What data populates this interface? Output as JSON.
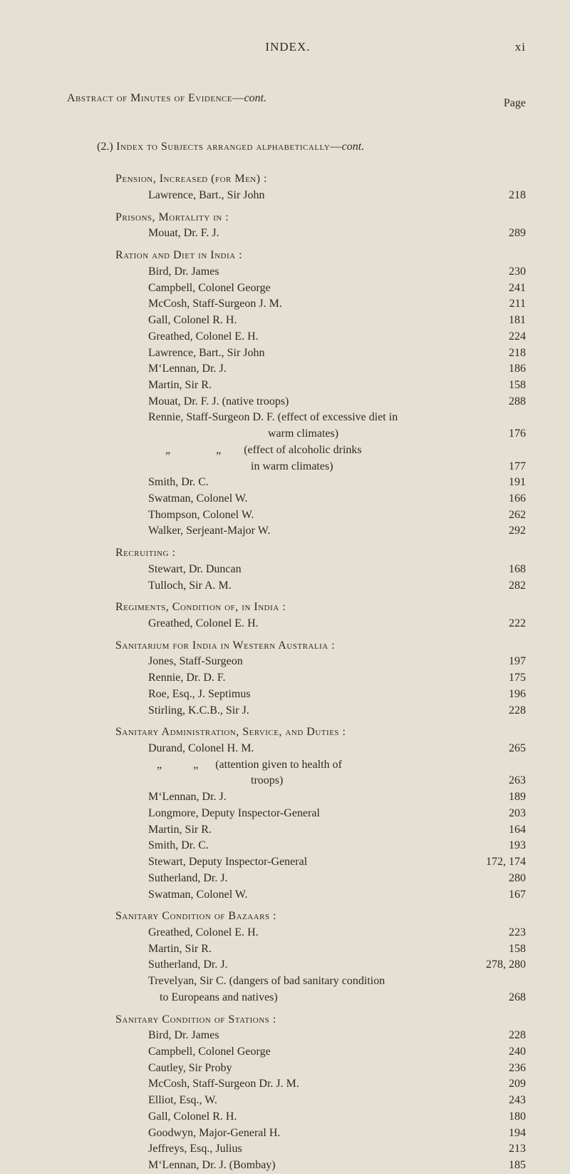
{
  "runningHead": {
    "title": "INDEX.",
    "folio": "xi"
  },
  "pageLabel": "Page",
  "topHeading1": {
    "pre": "Abstract",
    "rest": " of Minutes of Evidence—",
    "tail": "cont."
  },
  "topHeading2": {
    "num": "(2.)",
    "rest": " Index to Subjects arranged alphabetically—",
    "tail": "cont."
  },
  "entries": [
    {
      "type": "head",
      "indent": 2,
      "text": "Pension, Increased (for Men) :",
      "sc": true
    },
    {
      "type": "item",
      "indent": 3,
      "label": "Lawrence, Bart., Sir John",
      "page": "218"
    },
    {
      "type": "gap"
    },
    {
      "type": "head",
      "indent": 2,
      "text": "Prisons, Mortality in :",
      "sc": true
    },
    {
      "type": "item",
      "indent": 3,
      "label": "Mouat, Dr. F. J.",
      "page": "289"
    },
    {
      "type": "gap"
    },
    {
      "type": "head",
      "indent": 2,
      "text": "Ration and Diet in India :",
      "sc": true
    },
    {
      "type": "item",
      "indent": 3,
      "label": "Bird, Dr. James",
      "page": "230"
    },
    {
      "type": "item",
      "indent": 3,
      "label": "Campbell, Colonel George",
      "page": "241"
    },
    {
      "type": "item",
      "indent": 3,
      "label": "McCosh, Staff-Surgeon J. M.",
      "page": "211"
    },
    {
      "type": "item",
      "indent": 3,
      "label": "Gall, Colonel R. H.",
      "page": "181"
    },
    {
      "type": "item",
      "indent": 3,
      "label": "Greathed, Colonel E. H.",
      "page": "224"
    },
    {
      "type": "item",
      "indent": 3,
      "label": "Lawrence, Bart., Sir John",
      "page": "218"
    },
    {
      "type": "item",
      "indent": 3,
      "label": "M‘Lennan, Dr. J.",
      "page": "186"
    },
    {
      "type": "item",
      "indent": 3,
      "label": "Martin, Sir R.",
      "page": "158"
    },
    {
      "type": "item",
      "indent": 3,
      "label": "Mouat, Dr. F. J. (native troops)",
      "page": "288"
    },
    {
      "type": "item",
      "indent": 3,
      "label": "Rennie, Staff-Surgeon D. F. (effect of excessive diet in",
      "page": ""
    },
    {
      "type": "item",
      "indent": 3,
      "label": "                                          warm climates)",
      "page": "176"
    },
    {
      "type": "item",
      "indent": 3,
      "label": "      „                „        (effect of alcoholic drinks",
      "page": ""
    },
    {
      "type": "item",
      "indent": 3,
      "label": "                                    in warm climates)",
      "page": "177"
    },
    {
      "type": "item",
      "indent": 3,
      "label": "Smith, Dr. C.",
      "page": "191"
    },
    {
      "type": "item",
      "indent": 3,
      "label": "Swatman, Colonel W.",
      "page": "166"
    },
    {
      "type": "item",
      "indent": 3,
      "label": "Thompson, Colonel W.",
      "page": "262"
    },
    {
      "type": "item",
      "indent": 3,
      "label": "Walker, Serjeant-Major W.",
      "page": "292"
    },
    {
      "type": "gap"
    },
    {
      "type": "head",
      "indent": 2,
      "text": "Recruiting :",
      "sc": true
    },
    {
      "type": "item",
      "indent": 3,
      "label": "Stewart, Dr. Duncan",
      "page": "168"
    },
    {
      "type": "item",
      "indent": 3,
      "label": "Tulloch, Sir A. M.",
      "page": "282"
    },
    {
      "type": "gap"
    },
    {
      "type": "head",
      "indent": 2,
      "text": "Regiments, Condition of, in India :",
      "sc": true
    },
    {
      "type": "item",
      "indent": 3,
      "label": "Greathed, Colonel E. H.",
      "page": "222"
    },
    {
      "type": "gap"
    },
    {
      "type": "head",
      "indent": 2,
      "text": "Sanitarium for India in Western Australia :",
      "sc": true
    },
    {
      "type": "item",
      "indent": 3,
      "label": "Jones, Staff-Surgeon",
      "page": "197"
    },
    {
      "type": "item",
      "indent": 3,
      "label": "Rennie, Dr. D. F.",
      "page": "175"
    },
    {
      "type": "item",
      "indent": 3,
      "label": "Roe, Esq., J. Septimus",
      "page": "196"
    },
    {
      "type": "item",
      "indent": 3,
      "label": "Stirling, K.C.B., Sir J.",
      "page": "228"
    },
    {
      "type": "gap"
    },
    {
      "type": "head",
      "indent": 2,
      "text": "Sanitary Administration, Service, and Duties :",
      "sc": true
    },
    {
      "type": "item",
      "indent": 3,
      "label": "Durand, Colonel H. M.",
      "page": "265"
    },
    {
      "type": "item",
      "indent": 3,
      "label": "   „           „      (attention given to health of",
      "page": ""
    },
    {
      "type": "item",
      "indent": 3,
      "label": "                                    troops)",
      "page": "263"
    },
    {
      "type": "item",
      "indent": 3,
      "label": "M‘Lennan, Dr. J.",
      "page": "189"
    },
    {
      "type": "item",
      "indent": 3,
      "label": "Longmore, Deputy Inspector-General",
      "page": "203"
    },
    {
      "type": "item",
      "indent": 3,
      "label": "Martin, Sir R.",
      "page": "164"
    },
    {
      "type": "item",
      "indent": 3,
      "label": "Smith, Dr. C.",
      "page": "193"
    },
    {
      "type": "item",
      "indent": 3,
      "label": "Stewart, Deputy Inspector-General",
      "page": "172, 174"
    },
    {
      "type": "item",
      "indent": 3,
      "label": "Sutherland, Dr. J.",
      "page": "280"
    },
    {
      "type": "item",
      "indent": 3,
      "label": "Swatman, Colonel W.",
      "page": "167"
    },
    {
      "type": "gap"
    },
    {
      "type": "head",
      "indent": 2,
      "text": "Sanitary Condition of Bazaars :",
      "sc": true
    },
    {
      "type": "item",
      "indent": 3,
      "label": "Greathed, Colonel E. H.",
      "page": "223"
    },
    {
      "type": "item",
      "indent": 3,
      "label": "Martin, Sir R.",
      "page": "158"
    },
    {
      "type": "item",
      "indent": 3,
      "label": "Sutherland, Dr. J.",
      "page": "278, 280"
    },
    {
      "type": "item",
      "indent": 3,
      "label": "Trevelyan, Sir C. (dangers of bad sanitary condition",
      "page": ""
    },
    {
      "type": "item",
      "indent": 3,
      "label": "    to Europeans and natives)",
      "page": "268"
    },
    {
      "type": "gap"
    },
    {
      "type": "head",
      "indent": 2,
      "text": "Sanitary Condition of Stations :",
      "sc": true
    },
    {
      "type": "item",
      "indent": 3,
      "label": "Bird, Dr. James",
      "page": "228"
    },
    {
      "type": "item",
      "indent": 3,
      "label": "Campbell, Colonel George",
      "page": "240"
    },
    {
      "type": "item",
      "indent": 3,
      "label": "Cautley, Sir Proby",
      "page": "236"
    },
    {
      "type": "item",
      "indent": 3,
      "label": "McCosh, Staff-Surgeon Dr. J. M.",
      "page": "209"
    },
    {
      "type": "item",
      "indent": 3,
      "label": "Elliot, Esq., W.",
      "page": "243"
    },
    {
      "type": "item",
      "indent": 3,
      "label": "Gall, Colonel R. H.",
      "page": "180"
    },
    {
      "type": "item",
      "indent": 3,
      "label": "Goodwyn, Major-General H.",
      "page": "194"
    },
    {
      "type": "item",
      "indent": 3,
      "label": "Jeffreys, Esq., Julius",
      "page": "213"
    },
    {
      "type": "item",
      "indent": 3,
      "label": "M‘Lennan, Dr. J. (Bombay)",
      "page": "185"
    }
  ],
  "style": {
    "background": "#e4e0d4",
    "text": "#2b2a24",
    "baseFontSize": 16,
    "lineHeight": 1.42,
    "indentStepPx": 46,
    "pageWidth": 800,
    "pageHeight": 1446
  }
}
